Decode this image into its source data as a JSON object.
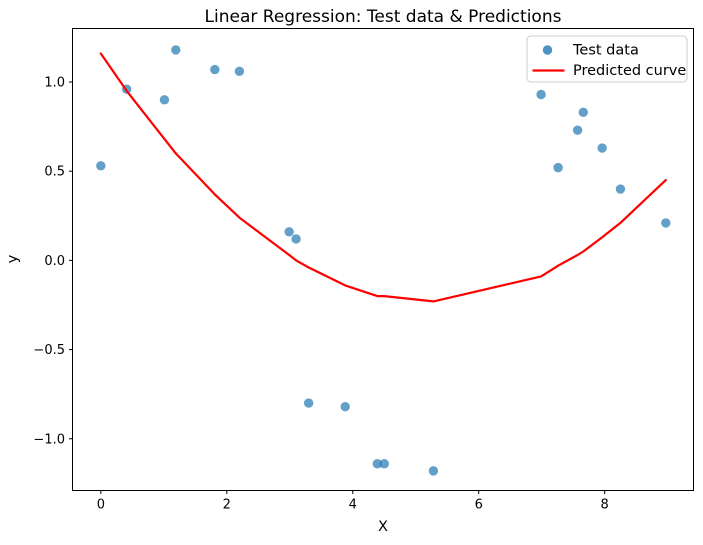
{
  "figure": {
    "background": "#ffffff"
  },
  "chart_data": {
    "type": "scatter",
    "title": "Linear Regression: Test data & Predictions",
    "xlabel": "X",
    "ylabel": "y",
    "xlim": [
      -0.45,
      9.41
    ],
    "ylim": [
      -1.29,
      1.3
    ],
    "grid": false,
    "xticks": {
      "values": [
        0,
        2,
        4,
        6,
        8
      ],
      "labels": [
        "0",
        "2",
        "4",
        "6",
        "8"
      ]
    },
    "yticks": {
      "values": [
        1.0,
        0.5,
        0.0,
        -0.5,
        -1.0
      ],
      "labels": [
        "1.0",
        "0.5",
        "0.0",
        "−0.5",
        "−1.0"
      ]
    },
    "legend": {
      "position": "upper right",
      "entries": [
        {
          "label": "Test data",
          "marker": "dot",
          "color": "#1f77b4"
        },
        {
          "label": "Predicted curve",
          "marker": "line",
          "color": "#ff0000"
        }
      ]
    },
    "series": [
      {
        "name": "Test data",
        "type": "scatter",
        "color": "#1f77b4",
        "alpha": 0.7,
        "x": [
          0.0,
          0.41,
          1.01,
          1.19,
          1.81,
          2.2,
          2.99,
          3.1,
          3.3,
          3.88,
          4.39,
          4.5,
          5.28,
          6.99,
          7.26,
          7.57,
          7.66,
          7.96,
          8.25,
          8.97
        ],
        "y": [
          0.53,
          0.96,
          0.9,
          1.18,
          1.07,
          1.06,
          0.16,
          0.12,
          -0.8,
          -0.82,
          -1.14,
          -1.14,
          -1.18,
          0.93,
          0.52,
          0.73,
          0.83,
          0.63,
          0.4,
          0.21
        ]
      },
      {
        "name": "Predicted curve",
        "type": "line",
        "color": "#ff0000",
        "linewidth": 2,
        "x": [
          0.0,
          0.41,
          1.01,
          1.19,
          1.81,
          2.2,
          2.99,
          3.1,
          3.3,
          3.88,
          4.39,
          4.5,
          5.28,
          6.99,
          7.26,
          7.57,
          7.66,
          7.96,
          8.25,
          8.97
        ],
        "y": [
          1.16,
          0.95,
          0.68,
          0.6,
          0.37,
          0.24,
          0.03,
          0.0,
          -0.04,
          -0.14,
          -0.2,
          -0.2,
          -0.23,
          -0.09,
          -0.03,
          0.03,
          0.05,
          0.13,
          0.21,
          0.45
        ]
      }
    ]
  }
}
